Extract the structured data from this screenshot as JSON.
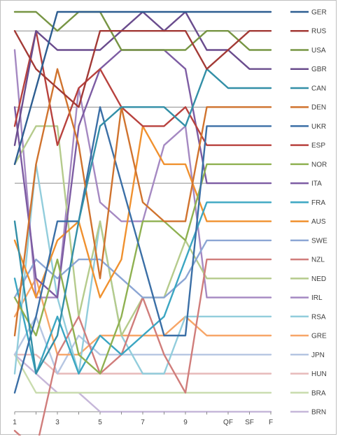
{
  "chart_data": {
    "type": "line",
    "title": "",
    "xlabel": "",
    "ylabel": "",
    "x": [
      "1",
      "2",
      "3",
      "4",
      "5",
      "6",
      "7",
      "8",
      "9",
      "10",
      "QF",
      "SF",
      "F"
    ],
    "x_tick_labels": [
      "1",
      "",
      "3",
      "",
      "5",
      "",
      "7",
      "",
      "9",
      "",
      "QF",
      "SF",
      "F"
    ],
    "y_direction": "rank 1 at top, 22 at bottom",
    "ylim": [
      1,
      22
    ],
    "gridlines": [
      2,
      6,
      10
    ],
    "legend_position": "right",
    "series": [
      {
        "name": "GER",
        "color": "#2E5E91",
        "ranks": [
          9,
          5,
          1,
          1,
          1,
          1,
          1,
          1,
          1,
          1,
          1,
          1,
          1
        ]
      },
      {
        "name": "RUS",
        "color": "#A33A36",
        "ranks": [
          2,
          4,
          5,
          6,
          2,
          2,
          2,
          2,
          2,
          4,
          3,
          2,
          2
        ]
      },
      {
        "name": "USA",
        "color": "#779544",
        "ranks": [
          1,
          1,
          2,
          1,
          1,
          3,
          3,
          3,
          3,
          2,
          2,
          3,
          3
        ]
      },
      {
        "name": "GBR",
        "color": "#6A4C8D",
        "ranks": [
          8,
          2,
          3,
          3,
          3,
          2,
          1,
          2,
          1,
          3,
          3,
          4,
          4
        ]
      },
      {
        "name": "CAN",
        "color": "#338FA7",
        "ranks": [
          12,
          20,
          18,
          12,
          7,
          6,
          6,
          6,
          7,
          4,
          5,
          5,
          5
        ]
      },
      {
        "name": "DEN",
        "color": "#D0732E",
        "ranks": [
          18,
          9,
          4,
          8,
          15,
          6,
          11,
          12,
          12,
          6,
          6,
          6,
          6
        ]
      },
      {
        "name": "UKR",
        "color": "#3B6FA6",
        "ranks": [
          21,
          17,
          12,
          12,
          6,
          10,
          14,
          18,
          18,
          7,
          7,
          7,
          7
        ]
      },
      {
        "name": "ESP",
        "color": "#B8423E",
        "ranks": [
          7,
          2,
          8,
          5,
          4,
          6,
          7,
          7,
          6,
          8,
          8,
          8,
          8
        ]
      },
      {
        "name": "NOR",
        "color": "#8FB151",
        "ranks": [
          16,
          18,
          14,
          19,
          20,
          17,
          12,
          12,
          13,
          9,
          9,
          9,
          9
        ]
      },
      {
        "name": "ITA",
        "color": "#7D5CA3",
        "ranks": [
          6,
          15,
          16,
          7,
          4,
          3,
          3,
          3,
          4,
          10,
          10,
          10,
          10
        ]
      },
      {
        "name": "FRA",
        "color": "#3BA6C2",
        "ranks": [
          15,
          20,
          17,
          20,
          18,
          19,
          18,
          17,
          14,
          11,
          11,
          11,
          11
        ]
      },
      {
        "name": "AUS",
        "color": "#F0912F",
        "ranks": [
          13,
          16,
          13,
          12,
          16,
          14,
          7,
          9,
          9,
          12,
          12,
          12,
          12
        ]
      },
      {
        "name": "SWE",
        "color": "#8CA6D4",
        "ranks": [
          16,
          14,
          15,
          14,
          14,
          15,
          16,
          16,
          15,
          13,
          13,
          13,
          13
        ]
      },
      {
        "name": "NZL",
        "color": "#D07D7B",
        "ranks": [
          23,
          24,
          19,
          17,
          20,
          19,
          16,
          19,
          21,
          14,
          14,
          14,
          14
        ]
      },
      {
        "name": "NED",
        "color": "#B5CB8C",
        "ranks": [
          9,
          7,
          7,
          17,
          12,
          18,
          16,
          16,
          13,
          15,
          15,
          15,
          15
        ]
      },
      {
        "name": "IRL",
        "color": "#A589C2",
        "ranks": [
          3,
          16,
          16,
          5,
          11,
          12,
          12,
          8,
          7,
          16,
          16,
          16,
          16
        ]
      },
      {
        "name": "RSA",
        "color": "#92CDDC",
        "ranks": [
          20,
          9,
          16,
          20,
          12,
          18,
          20,
          20,
          17,
          17,
          17,
          17,
          17
        ]
      },
      {
        "name": "GRE",
        "color": "#F7A668",
        "ranks": [
          17,
          15,
          19,
          19,
          18,
          18,
          18,
          18,
          17,
          18,
          18,
          18,
          18
        ]
      },
      {
        "name": "JPN",
        "color": "#B6C6E2",
        "ranks": [
          19,
          17,
          20,
          18,
          19,
          19,
          19,
          19,
          19,
          19,
          19,
          19,
          19
        ]
      },
      {
        "name": "HUN",
        "color": "#E7BABA",
        "ranks": [
          19,
          19,
          20,
          20,
          20,
          20,
          20,
          20,
          20,
          20,
          20,
          20,
          20
        ]
      },
      {
        "name": "BRA",
        "color": "#C9DCAE",
        "ranks": [
          19,
          21,
          21,
          21,
          21,
          21,
          21,
          21,
          21,
          21,
          21,
          21,
          21
        ]
      },
      {
        "name": "BRN",
        "color": "#C6B7D9",
        "ranks": [
          19,
          20,
          21,
          21,
          22,
          22,
          22,
          22,
          22,
          22,
          22,
          22,
          22
        ]
      }
    ]
  }
}
